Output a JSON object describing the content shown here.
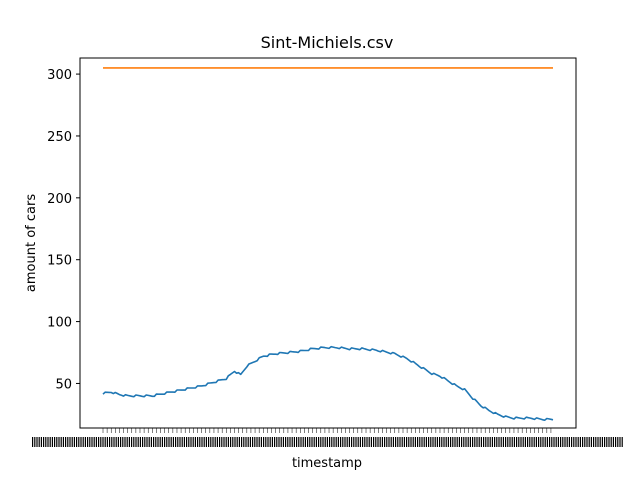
{
  "chart_data": {
    "type": "line",
    "title": "Sint-Michiels.csv",
    "xlabel": "timestamp",
    "ylabel": "amount of cars",
    "ylim": [
      14,
      313
    ],
    "yticks": [
      50,
      100,
      150,
      200,
      250,
      300
    ],
    "grid": false,
    "legend": "none",
    "x_points": 220,
    "x_tick_labels_note": "dense, overlapping, unreadable timestamp labels",
    "series": [
      {
        "color": "#1f77b4",
        "anchors": [
          [
            0,
            42
          ],
          [
            4,
            43
          ],
          [
            8,
            41
          ],
          [
            12,
            40
          ],
          [
            18,
            40
          ],
          [
            24,
            40
          ],
          [
            30,
            42
          ],
          [
            36,
            44
          ],
          [
            42,
            46
          ],
          [
            48,
            48
          ],
          [
            54,
            51
          ],
          [
            60,
            54
          ],
          [
            64,
            60
          ],
          [
            67,
            57
          ],
          [
            70,
            64
          ],
          [
            74,
            68
          ],
          [
            78,
            72
          ],
          [
            84,
            74
          ],
          [
            90,
            75
          ],
          [
            96,
            76
          ],
          [
            102,
            78
          ],
          [
            108,
            79
          ],
          [
            114,
            79
          ],
          [
            120,
            78
          ],
          [
            126,
            78
          ],
          [
            132,
            77
          ],
          [
            136,
            76
          ],
          [
            142,
            74
          ],
          [
            148,
            70
          ],
          [
            152,
            66
          ],
          [
            156,
            62
          ],
          [
            160,
            58
          ],
          [
            164,
            56
          ],
          [
            168,
            52
          ],
          [
            172,
            48
          ],
          [
            176,
            45
          ],
          [
            180,
            38
          ],
          [
            184,
            32
          ],
          [
            188,
            28
          ],
          [
            192,
            25
          ],
          [
            196,
            23
          ],
          [
            200,
            22
          ],
          [
            208,
            22
          ],
          [
            214,
            21
          ],
          [
            219,
            21
          ]
        ]
      },
      {
        "color": "#ff7f0e",
        "anchors": [
          [
            0,
            305
          ],
          [
            219,
            305
          ]
        ]
      }
    ]
  }
}
